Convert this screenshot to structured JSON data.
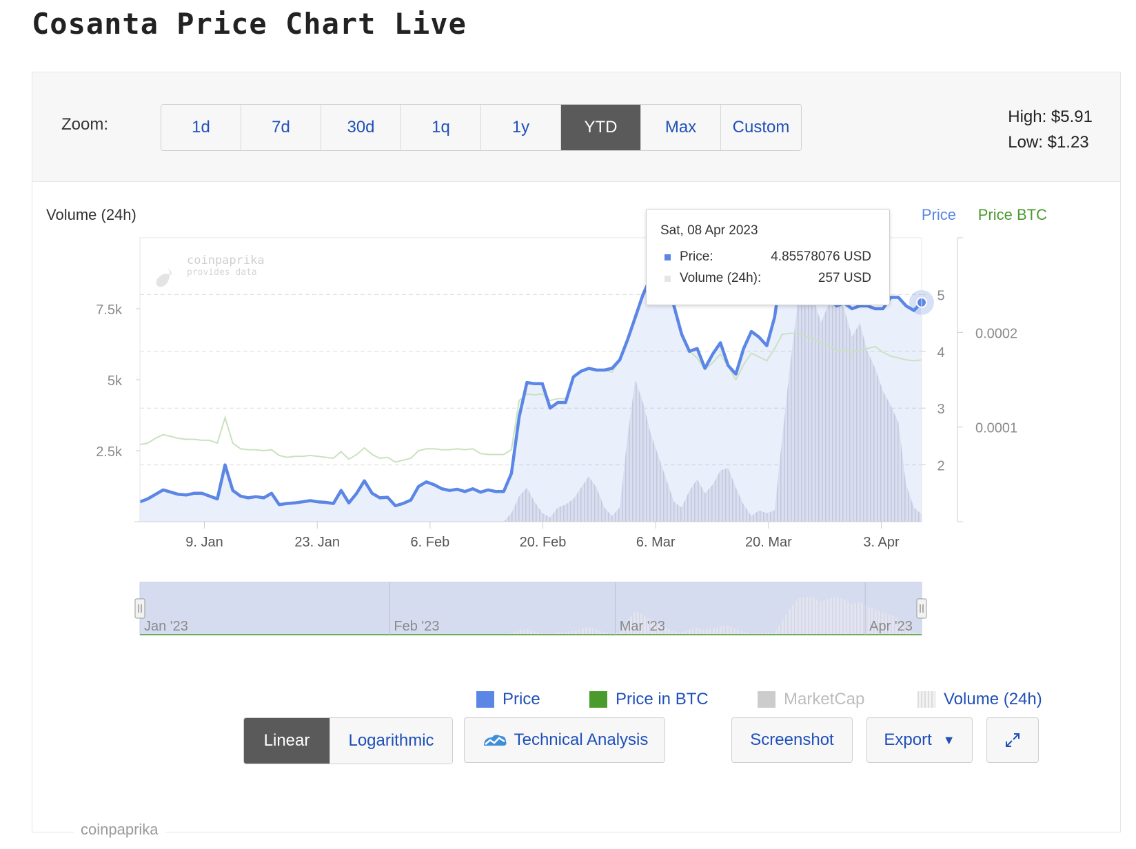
{
  "page": {
    "title": "Cosanta Price Chart Live"
  },
  "toolbar": {
    "zoom_label": "Zoom:",
    "zoom_options": [
      "1d",
      "7d",
      "30d",
      "1q",
      "1y",
      "YTD",
      "Max",
      "Custom"
    ],
    "zoom_selected": "YTD",
    "high": "High: $5.91",
    "low": "Low: $1.23"
  },
  "tooltip": {
    "date": "Sat, 08 Apr 2023",
    "price_label": "Price:",
    "price_value": "4.85578076 USD",
    "volume_label": "Volume (24h):",
    "volume_value": "257 USD"
  },
  "legend": {
    "price": "Price",
    "price_btc": "Price in BTC",
    "marketcap": "MarketCap",
    "volume": "Volume (24h)"
  },
  "buttons": {
    "linear": "Linear",
    "logarithmic": "Logarithmic",
    "technical_analysis": "Technical Analysis",
    "screenshot": "Screenshot",
    "export": "Export"
  },
  "credit": "coinpaprika",
  "colors": {
    "price": "#5b86e5",
    "price_btc": "#4a9a2c",
    "marketcap": "#cccccc",
    "volume": "#d9d9d9",
    "link": "#1f4fb8",
    "active": "#5a5a5a"
  },
  "chart_data": {
    "type": "line",
    "x_start": "2023-01-01",
    "x_end": "2023-04-08",
    "x_ticks": [
      "9. Jan",
      "23. Jan",
      "6. Feb",
      "20. Feb",
      "6. Mar",
      "20. Mar",
      "3. Apr"
    ],
    "x_tick_dates": [
      "2023-01-09",
      "2023-01-23",
      "2023-02-06",
      "2023-02-20",
      "2023-03-06",
      "2023-03-20",
      "2023-04-03"
    ],
    "axes": {
      "volume": {
        "title": "Volume (24h)",
        "ticks": [
          "2.5k",
          "5k",
          "7.5k"
        ],
        "tick_values": [
          2500,
          5000,
          7500
        ],
        "range": [
          0,
          10000
        ]
      },
      "price": {
        "title": "Price",
        "ticks": [
          "2",
          "3",
          "4",
          "5"
        ],
        "tick_values": [
          2,
          3,
          4,
          5
        ],
        "range": [
          1,
          6
        ]
      },
      "price_btc": {
        "title": "Price BTC",
        "ticks": [
          "0.0001",
          "0.0002"
        ],
        "tick_values": [
          0.0001,
          0.0002
        ],
        "range": [
          0,
          0.0003
        ]
      }
    },
    "navigator_labels": [
      "Jan '23",
      "Feb '23",
      "Mar '23",
      "Apr '23"
    ],
    "series": [
      {
        "name": "Price",
        "axis": "price",
        "values": [
          1.35,
          1.4,
          1.48,
          1.56,
          1.52,
          1.48,
          1.47,
          1.5,
          1.5,
          1.45,
          1.4,
          2.0,
          1.55,
          1.45,
          1.42,
          1.44,
          1.42,
          1.5,
          1.3,
          1.32,
          1.33,
          1.35,
          1.37,
          1.35,
          1.34,
          1.32,
          1.55,
          1.33,
          1.5,
          1.72,
          1.5,
          1.42,
          1.43,
          1.28,
          1.32,
          1.38,
          1.62,
          1.7,
          1.65,
          1.58,
          1.55,
          1.57,
          1.53,
          1.58,
          1.52,
          1.56,
          1.53,
          1.53,
          1.85,
          2.85,
          3.45,
          3.43,
          3.43,
          3.0,
          3.1,
          3.1,
          3.55,
          3.65,
          3.7,
          3.67,
          3.67,
          3.7,
          3.85,
          4.2,
          4.6,
          5.0,
          5.3,
          5.6,
          5.3,
          4.8,
          4.3,
          4.0,
          4.05,
          3.7,
          3.95,
          4.15,
          3.75,
          3.6,
          4.05,
          4.35,
          4.25,
          4.1,
          4.6,
          5.55,
          5.62,
          5.58,
          5.4,
          5.2,
          5.05,
          4.95,
          4.8,
          4.85,
          4.75,
          4.8,
          4.8,
          4.75,
          4.75,
          4.95,
          4.95,
          4.8,
          4.72,
          4.86
        ]
      },
      {
        "name": "Price in BTC",
        "axis": "price_btc",
        "values": [
          8.15e-05,
          8.3e-05,
          8.8e-05,
          9.2e-05,
          9e-05,
          8.8e-05,
          8.7e-05,
          8.7e-05,
          8.6e-05,
          8.6e-05,
          8.3e-05,
          0.00011,
          8.3e-05,
          7.7e-05,
          7.6e-05,
          7.6e-05,
          7.5e-05,
          7.6e-05,
          7e-05,
          6.8e-05,
          6.9e-05,
          6.9e-05,
          7e-05,
          6.9e-05,
          6.8e-05,
          6.7e-05,
          7.4e-05,
          6.6e-05,
          7.1e-05,
          7.8e-05,
          7.1e-05,
          6.7e-05,
          6.8e-05,
          6.3e-05,
          6.5e-05,
          6.7e-05,
          7.5e-05,
          7.7e-05,
          7.7e-05,
          7.6e-05,
          7.6e-05,
          7.7e-05,
          7.6e-05,
          7.7e-05,
          7.2e-05,
          7.1e-05,
          7.1e-05,
          7.1e-05,
          7.6e-05,
          0.000128,
          0.000135,
          0.000134,
          0.000135,
          0.000128,
          0.00013,
          0.00013,
          0.000152,
          0.000158,
          0.000161,
          0.00016,
          0.00016,
          0.000158,
          0.00017,
          0.00019,
          0.000215,
          0.000238,
          0.000252,
          0.000262,
          0.000248,
          0.000225,
          0.0002,
          0.00018,
          0.000173,
          0.000161,
          0.000168,
          0.000177,
          0.000164,
          0.00015,
          0.000166,
          0.000178,
          0.000174,
          0.00017,
          0.000183,
          0.000198,
          0.000199,
          0.000199,
          0.000196,
          0.000193,
          0.000189,
          0.000186,
          0.000181,
          0.000181,
          0.000179,
          0.000181,
          0.000183,
          0.000185,
          0.000179,
          0.000175,
          0.000173,
          0.000171,
          0.00017,
          0.000171
        ]
      },
      {
        "name": "Volume (24h)",
        "axis": "volume",
        "values": [
          0,
          0,
          0,
          0,
          0,
          0,
          0,
          0,
          0,
          0,
          0,
          0,
          0,
          0,
          0,
          0,
          0,
          0,
          0,
          0,
          0,
          0,
          0,
          0,
          0,
          0,
          0,
          0,
          0,
          0,
          0,
          0,
          0,
          0,
          0,
          0,
          0,
          0,
          0,
          0,
          0,
          0,
          0,
          0,
          0,
          0,
          0,
          0,
          300,
          900,
          1200,
          700,
          300,
          150,
          500,
          600,
          800,
          1200,
          1600,
          1200,
          500,
          200,
          500,
          3000,
          5000,
          4200,
          3100,
          2300,
          1500,
          700,
          500,
          1100,
          1500,
          1000,
          1300,
          1800,
          1900,
          1200,
          600,
          200,
          400,
          300,
          400,
          3000,
          5500,
          7700,
          8000,
          7900,
          7000,
          7700,
          8000,
          7500,
          6500,
          7000,
          6000,
          5400,
          4600,
          4100,
          3500,
          1300,
          500,
          257
        ]
      }
    ]
  }
}
